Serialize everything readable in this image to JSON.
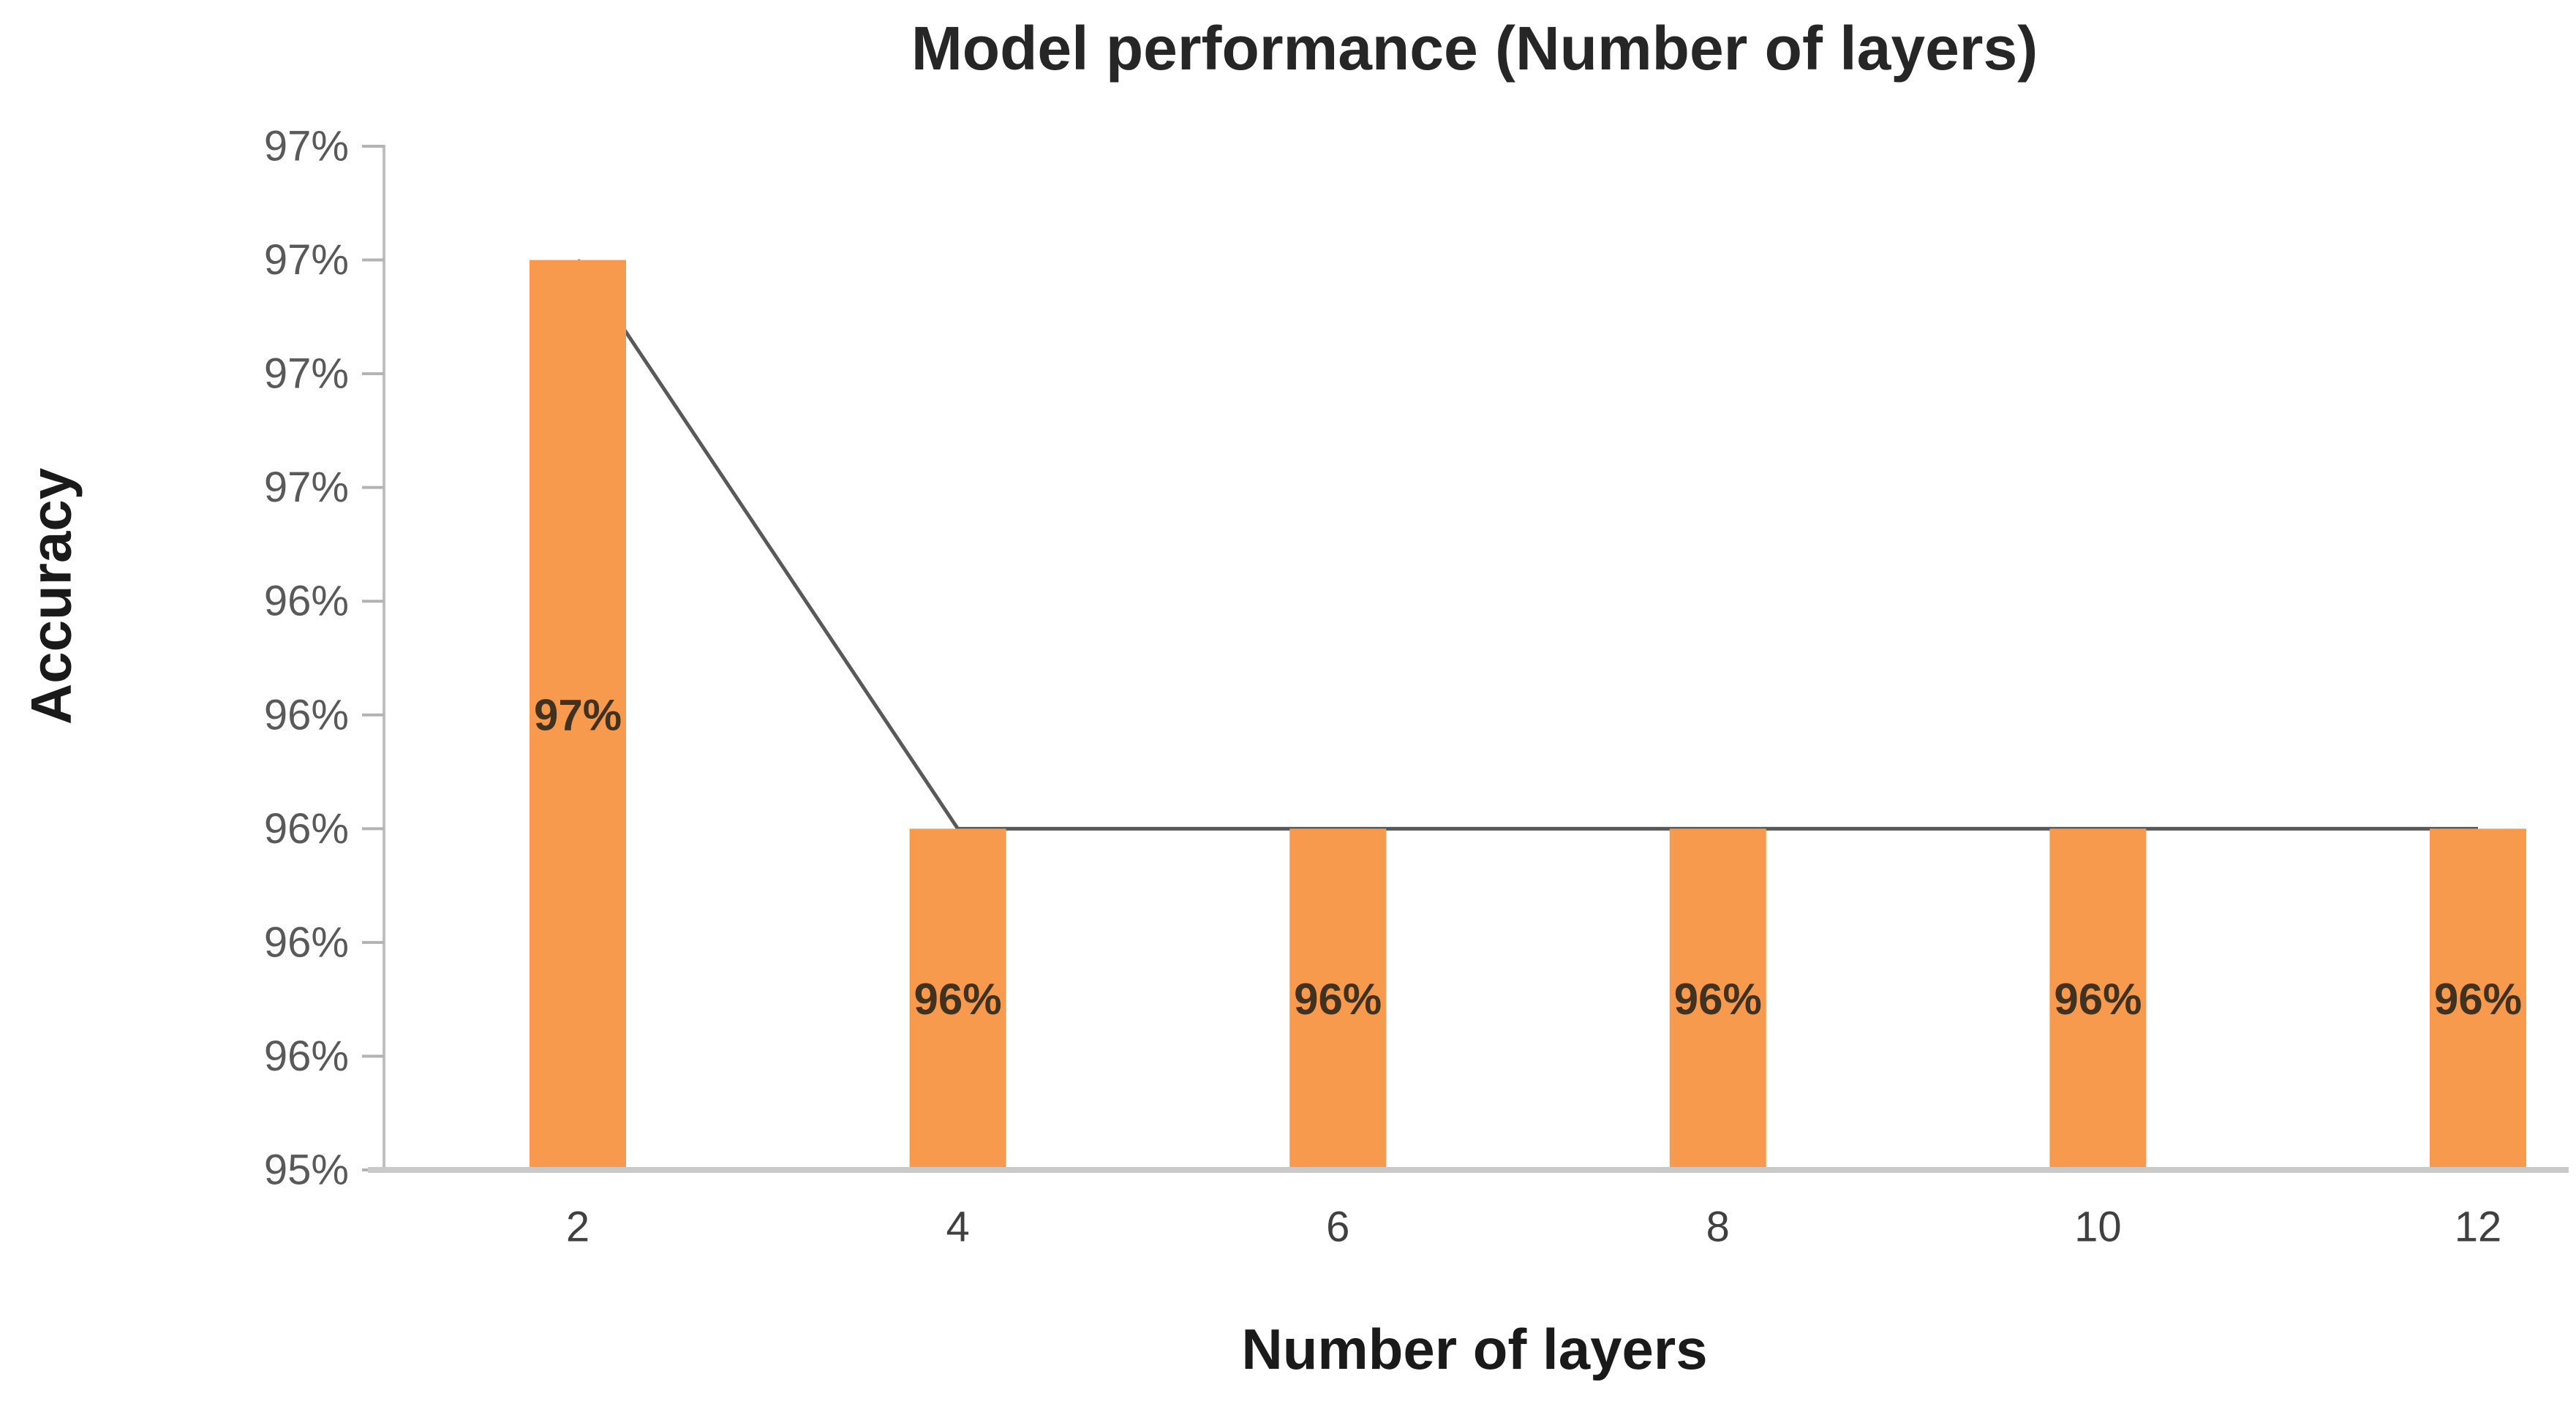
{
  "chart_data": {
    "type": "bar",
    "title": "Model performance (Number of layers)",
    "xlabel": "Number of layers",
    "ylabel": "Accuracy",
    "categories": [
      "2",
      "4",
      "6",
      "8",
      "10",
      "12"
    ],
    "series": [
      {
        "name": "accuracy-bars",
        "type": "bar",
        "values_percent": [
          97,
          96,
          96,
          96,
          96,
          96
        ],
        "labels": [
          "97%",
          "96%",
          "96%",
          "96%",
          "96%",
          "96%"
        ]
      },
      {
        "name": "accuracy-trend-line",
        "type": "line",
        "values_percent": [
          97,
          96,
          96,
          96,
          96,
          96
        ]
      }
    ],
    "y_axis": {
      "min_percent": 95.4,
      "max_percent": 97.2,
      "tick_step_percent": 0.2,
      "tick_labels_top_to_bottom": [
        "97%",
        "97%",
        "97%",
        "97%",
        "96%",
        "96%",
        "96%",
        "96%",
        "96%",
        "95%"
      ]
    },
    "grid": false,
    "legend": false,
    "colors": {
      "bar_fill": "#F89A4D",
      "trend_line": "#595959",
      "bar_label_text": "#41311F",
      "y_axis_line": "#BFBFBF",
      "y_tick_mark": "#B3B3B3",
      "x_axis_line": "#C9C9C9",
      "y_tick_text": "#595959",
      "x_tick_text": "#404040",
      "title_text": "#262626",
      "axis_title_text": "#1A1A1A",
      "background": "#FFFFFF"
    }
  }
}
